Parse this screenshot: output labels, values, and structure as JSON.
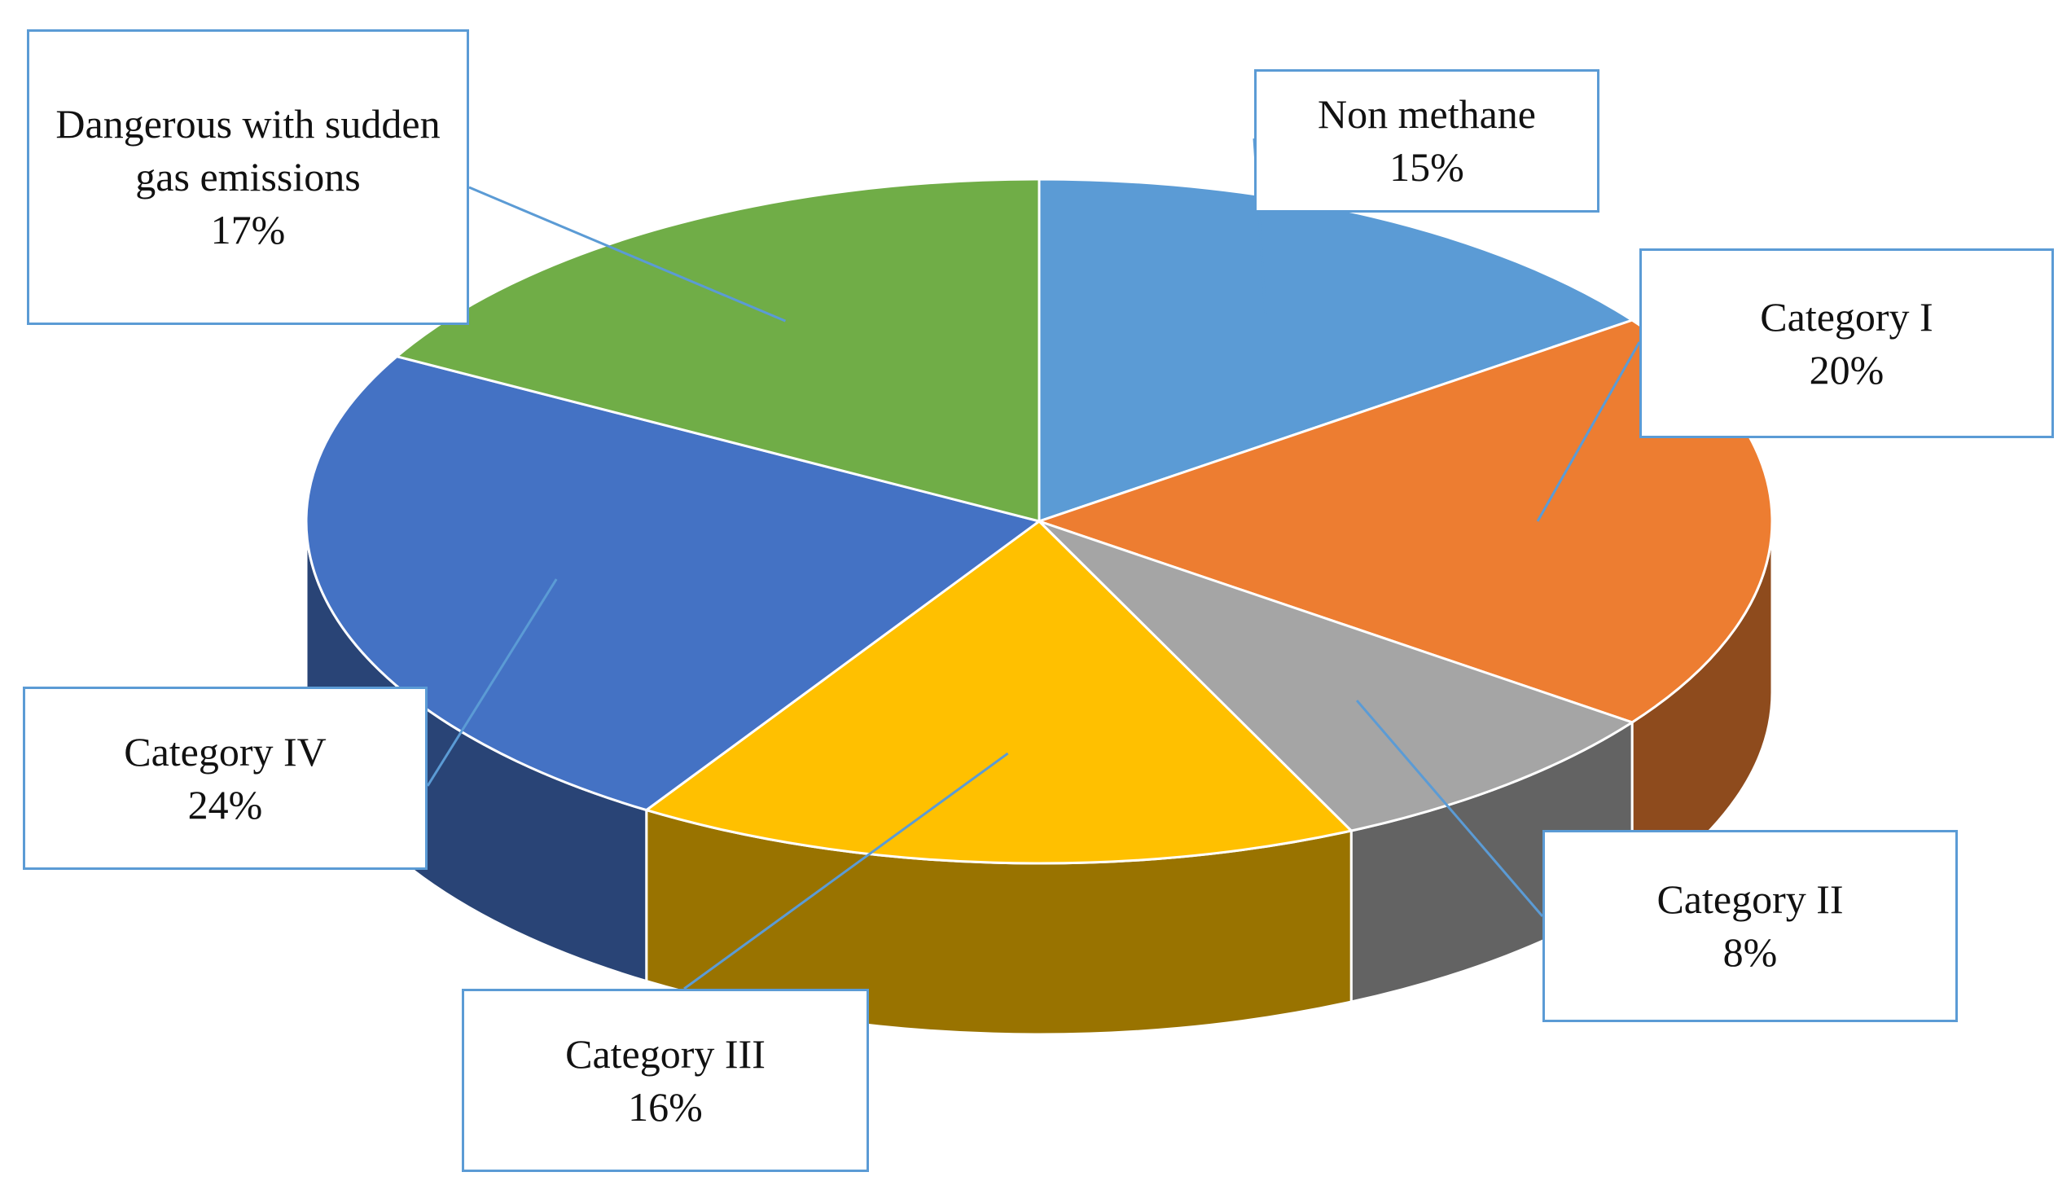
{
  "chart_data": {
    "type": "pie3d",
    "categories": [
      "Non methane",
      "Category I",
      "Category II",
      "Category III",
      "Category IV",
      "Dangerous with sudden gas emissions"
    ],
    "values": [
      15,
      20,
      8,
      16,
      24,
      17
    ],
    "value_labels": [
      "15%",
      "20%",
      "8%",
      "16%",
      "24%",
      "17%"
    ],
    "colors": [
      "#5b9bd5",
      "#ed7d31",
      "#a5a5a5",
      "#ffc000",
      "#4472c4",
      "#70ad47"
    ]
  }
}
